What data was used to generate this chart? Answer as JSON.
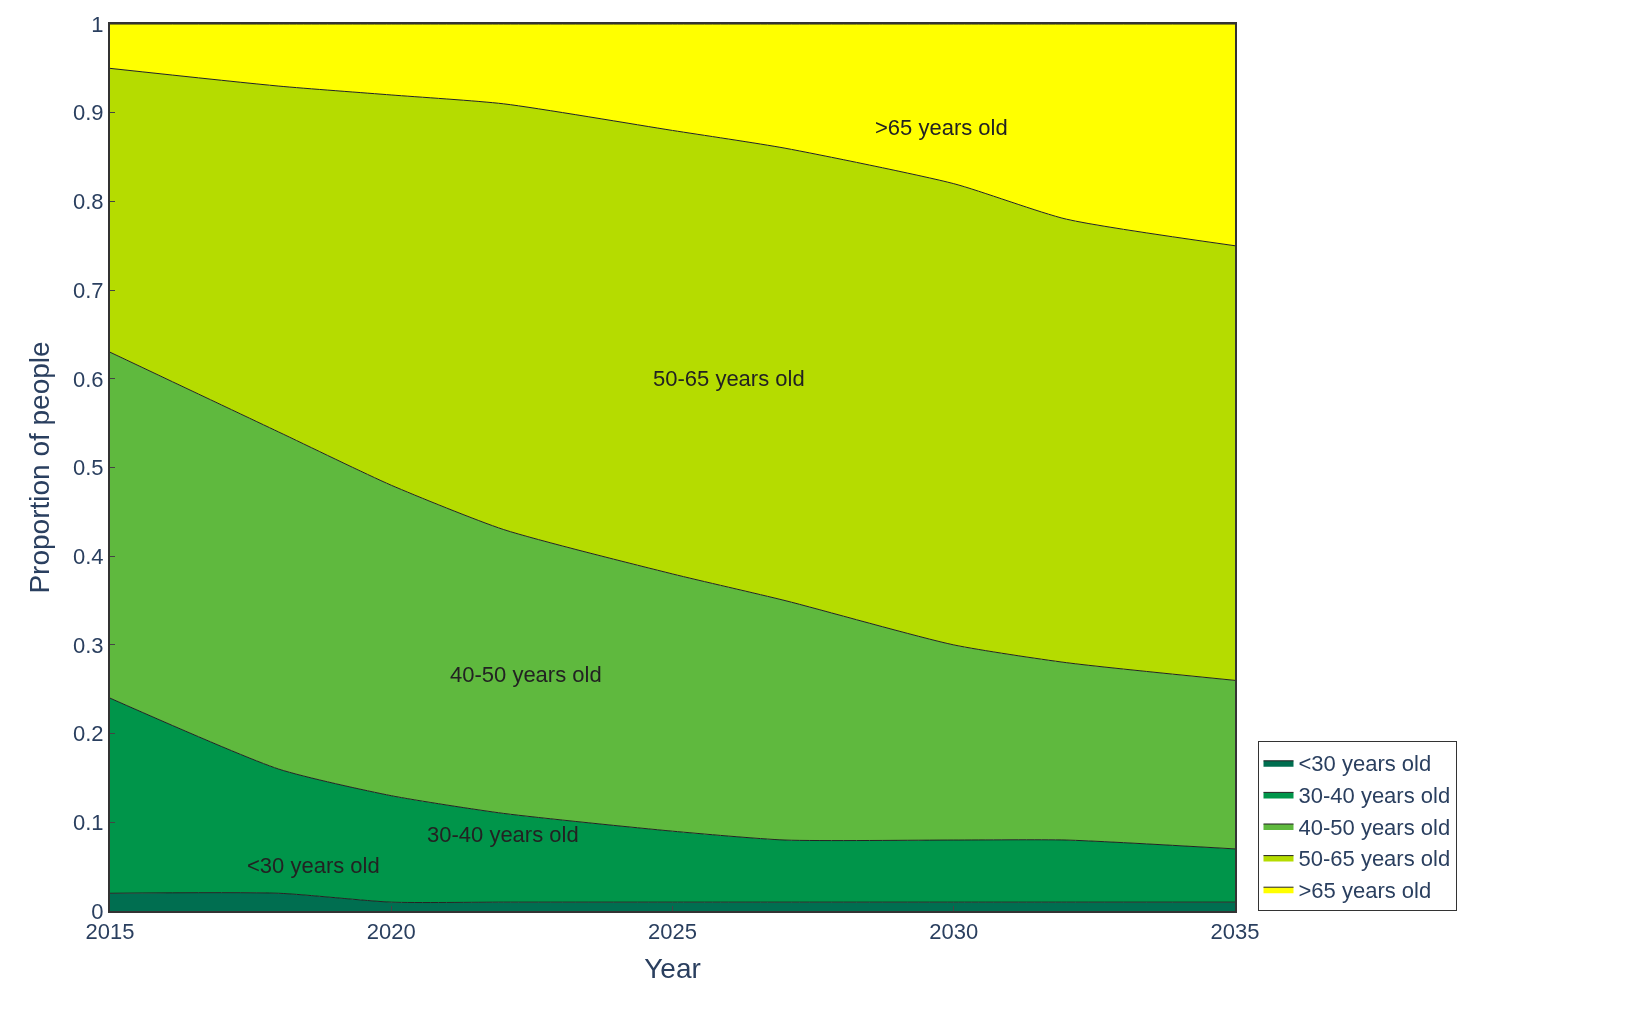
{
  "chart_data": {
    "type": "area",
    "stacked": true,
    "xlabel": "Year",
    "ylabel": "Proportion of people",
    "x": [
      2015,
      2018,
      2020,
      2022,
      2025,
      2027,
      2030,
      2032,
      2035
    ],
    "series": [
      {
        "name": "<30 years old",
        "color": "#006e50",
        "values": [
          0.02,
          0.02,
          0.01,
          0.01,
          0.01,
          0.01,
          0.01,
          0.01,
          0.01
        ]
      },
      {
        "name": "30-40 years old",
        "color": "#00954a",
        "values": [
          0.22,
          0.14,
          0.12,
          0.1,
          0.08,
          0.07,
          0.07,
          0.07,
          0.06
        ]
      },
      {
        "name": "40-50 years old",
        "color": "#5fb93e",
        "values": [
          0.39,
          0.38,
          0.35,
          0.32,
          0.29,
          0.27,
          0.22,
          0.2,
          0.19
        ]
      },
      {
        "name": "50-65 years old",
        "color": "#b5dc00",
        "values": [
          0.32,
          0.39,
          0.44,
          0.48,
          0.5,
          0.51,
          0.52,
          0.5,
          0.49
        ]
      },
      {
        "name": ">65 years old",
        "color": "#ffff00",
        "values": [
          0.05,
          0.07,
          0.08,
          0.09,
          0.12,
          0.14,
          0.18,
          0.22,
          0.25
        ]
      }
    ],
    "annotations": [
      ">65 years old",
      "50-65 years old",
      "40-50 years old",
      "30-40 years old",
      "<30 years old"
    ],
    "xlim": [
      2015,
      2035
    ],
    "xticks": [
      2015,
      2020,
      2025,
      2030,
      2035
    ],
    "ylim": [
      0,
      1
    ],
    "yticks": [
      0,
      0.1,
      0.2,
      0.3,
      0.4,
      0.5,
      0.6,
      0.7,
      0.8,
      0.9,
      1
    ],
    "legend": "bottom right"
  }
}
